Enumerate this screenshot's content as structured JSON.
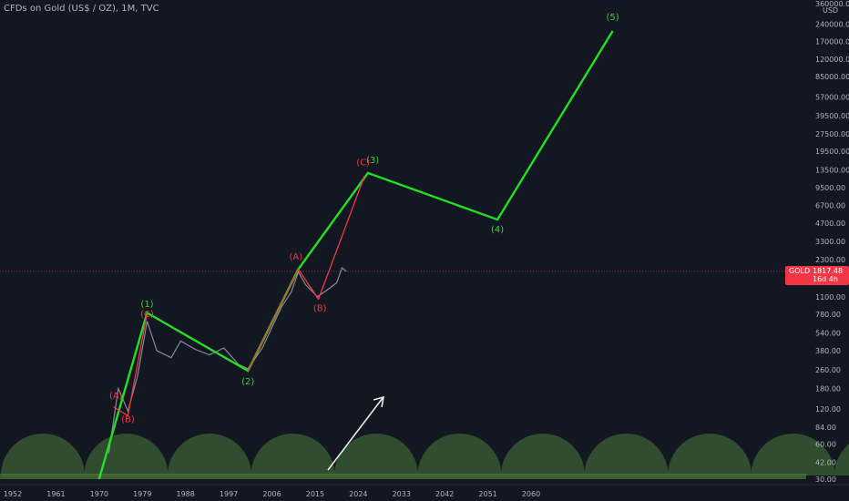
{
  "header": {
    "title": "CFDs on Gold (US$ / OZ), 1M, TVC"
  },
  "axis": {
    "unit": "USD"
  },
  "price_tag": {
    "symbol": "GOLD",
    "price": "1817.48",
    "countdown": "16d 4h"
  },
  "colors": {
    "background": "#131722",
    "wave_line": "#22e022",
    "correction_line": "#f23645",
    "label_green": "#3ed03e",
    "label_red": "#f23645",
    "arrow": "#e8e8e8",
    "circles": "#4a7a3a",
    "price_candles": "#9aa0a6",
    "price_line": "#f23645"
  },
  "chart_data": {
    "type": "line",
    "title": "CFDs on Gold (US$ / OZ), 1M, TVC",
    "y_scale": "log",
    "x_ticks": [
      "1952",
      "1961",
      "1970",
      "1979",
      "1988",
      "1997",
      "2006",
      "2015",
      "2024",
      "2033",
      "2042",
      "2051",
      "2060"
    ],
    "y_ticks": [
      360000,
      240000,
      170000,
      120000,
      85000,
      57000,
      39500,
      27500,
      19500,
      13500,
      9500,
      6700,
      4700,
      3300,
      2300,
      1600,
      1100,
      780,
      540,
      380,
      260,
      180,
      120,
      84,
      60,
      42,
      30
    ],
    "y_tick_labels": [
      "360000.00",
      "240000.00",
      "170000.00",
      "120000.00",
      "85000.00",
      "57000.00",
      "39500.00",
      "27500.00",
      "19500.00",
      "13500.00",
      "9500.00",
      "6700.00",
      "4700.00",
      "3300.00",
      "2300.00",
      "1600.00",
      "1100.00",
      "780.00",
      "540.00",
      "380.00",
      "260.00",
      "180.00",
      "120.00",
      "84.00",
      "60.00",
      "42.00",
      "30.00"
    ],
    "series": [
      {
        "role": "main-wave",
        "points": [
          [
            1970,
            30
          ],
          [
            1980,
            800
          ],
          [
            2001,
            255
          ],
          [
            2011.5,
            1900
          ],
          [
            2026,
            12700
          ],
          [
            2053,
            5050
          ],
          [
            2077,
            210000
          ]
        ]
      },
      {
        "role": "correction",
        "points": [
          [
            1973,
            125
          ],
          [
            1976,
            105
          ],
          [
            1980,
            800
          ]
        ]
      },
      {
        "role": "correction",
        "points": [
          [
            2001,
            255
          ],
          [
            2011.5,
            1900
          ],
          [
            2015.7,
            1050
          ],
          [
            2025.3,
            12000
          ]
        ]
      },
      {
        "role": "price",
        "points": [
          [
            1972,
            50
          ],
          [
            1974,
            180
          ],
          [
            1976,
            115
          ],
          [
            1978,
            230
          ],
          [
            1980,
            680
          ],
          [
            1982,
            380
          ],
          [
            1985,
            330
          ],
          [
            1987,
            460
          ],
          [
            1990,
            390
          ],
          [
            1993,
            350
          ],
          [
            1996,
            400
          ],
          [
            1999,
            290
          ],
          [
            2001,
            265
          ],
          [
            2004,
            400
          ],
          [
            2006,
            600
          ],
          [
            2008,
            900
          ],
          [
            2010,
            1200
          ],
          [
            2011.5,
            1800
          ],
          [
            2013,
            1400
          ],
          [
            2015.5,
            1100
          ],
          [
            2018,
            1300
          ],
          [
            2019.5,
            1450
          ],
          [
            2020.6,
            1950
          ],
          [
            2021.5,
            1820
          ]
        ]
      }
    ],
    "annotations": [
      {
        "text": "(1)",
        "x": 1980,
        "y": 900,
        "color": "green"
      },
      {
        "text": "(2)",
        "x": 2001,
        "y": 195,
        "color": "green"
      },
      {
        "text": "(3)",
        "x": 2027,
        "y": 15500,
        "color": "green"
      },
      {
        "text": "(4)",
        "x": 2053,
        "y": 3950,
        "color": "green"
      },
      {
        "text": "(5)",
        "x": 2077,
        "y": 260000,
        "color": "green"
      },
      {
        "text": "(A)",
        "x": 1973.5,
        "y": 148,
        "color": "red"
      },
      {
        "text": "(B)",
        "x": 1976,
        "y": 92,
        "color": "red"
      },
      {
        "text": "(C)",
        "x": 1980,
        "y": 740,
        "color": "red"
      },
      {
        "text": "(A)",
        "x": 2011,
        "y": 2300,
        "color": "red"
      },
      {
        "text": "(B)",
        "x": 2016,
        "y": 830,
        "color": "red"
      },
      {
        "text": "(C)",
        "x": 2025,
        "y": 14800,
        "color": "red"
      }
    ]
  }
}
